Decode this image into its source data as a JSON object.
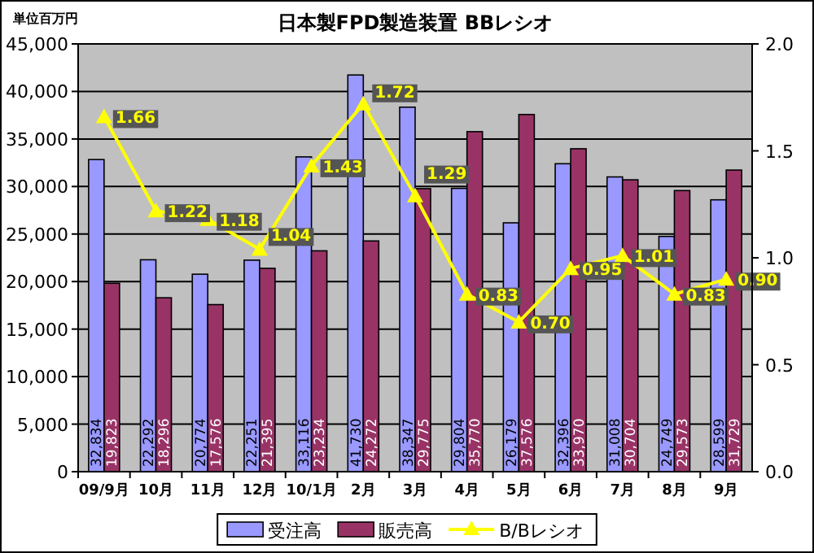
{
  "chart_data": {
    "type": "bar",
    "title": "日本製FPD製造装置 BBレシオ",
    "annotations": [
      "単位百万円"
    ],
    "categories": [
      "09/9月",
      "10月",
      "11月",
      "12月",
      "10/1月",
      "2月",
      "3月",
      "4月",
      "5月",
      "6月",
      "7月",
      "8月",
      "9月"
    ],
    "series": [
      {
        "name": "受注高",
        "color": "#9999ff",
        "values": [
          32834,
          22292,
          20774,
          22251,
          33116,
          41730,
          38347,
          29804,
          26179,
          32396,
          31008,
          24749,
          28599
        ],
        "value_labels": [
          "32,834",
          "22,292",
          "20,774",
          "22,251",
          "33,116",
          "41,730",
          "38,347",
          "29,804",
          "26,179",
          "32,396",
          "31,008",
          "24,749",
          "28,599"
        ]
      },
      {
        "name": "販売高",
        "color": "#993366",
        "values": [
          19823,
          18296,
          17576,
          21395,
          23234,
          24272,
          29775,
          35770,
          37576,
          33970,
          30704,
          29573,
          31729
        ],
        "value_labels": [
          "19,823",
          "18,296",
          "17,576",
          "21,395",
          "23,234",
          "24,272",
          "29,775",
          "35,770",
          "37,576",
          "33,970",
          "30,704",
          "29,573",
          "31,729"
        ]
      },
      {
        "name": "B/Bレシオ",
        "type": "line",
        "axis": "y2",
        "color": "#ffff00",
        "marker": "triangle",
        "values": [
          1.66,
          1.22,
          1.18,
          1.04,
          1.43,
          1.72,
          1.29,
          0.83,
          0.7,
          0.95,
          1.01,
          0.83,
          0.9
        ],
        "value_labels": [
          "1.66",
          "1.22",
          "1.18",
          "1.04",
          "1.43",
          "1.72",
          "1.29",
          "0.83",
          "0.70",
          "0.95",
          "1.01",
          "0.83",
          "0.90"
        ]
      }
    ],
    "ylim": [
      0,
      45000
    ],
    "yticks": [
      {
        "value": 0,
        "label": "0"
      },
      {
        "value": 5000,
        "label": "5,000"
      },
      {
        "value": 10000,
        "label": "10,000"
      },
      {
        "value": 15000,
        "label": "15,000"
      },
      {
        "value": 20000,
        "label": "20,000"
      },
      {
        "value": 25000,
        "label": "25,000"
      },
      {
        "value": 30000,
        "label": "30,000"
      },
      {
        "value": 35000,
        "label": "35,000"
      },
      {
        "value": 40000,
        "label": "40,000"
      },
      {
        "value": 45000,
        "label": "45,000"
      }
    ],
    "y2lim": [
      0,
      2
    ],
    "y2ticks": [
      {
        "value": 0,
        "label": "0.0"
      },
      {
        "value": 0.5,
        "label": "0.5"
      },
      {
        "value": 1,
        "label": "1.0"
      },
      {
        "value": 1.5,
        "label": "1.5"
      },
      {
        "value": 2,
        "label": "2.0"
      }
    ],
    "grid": "y",
    "legend": "bottom"
  }
}
